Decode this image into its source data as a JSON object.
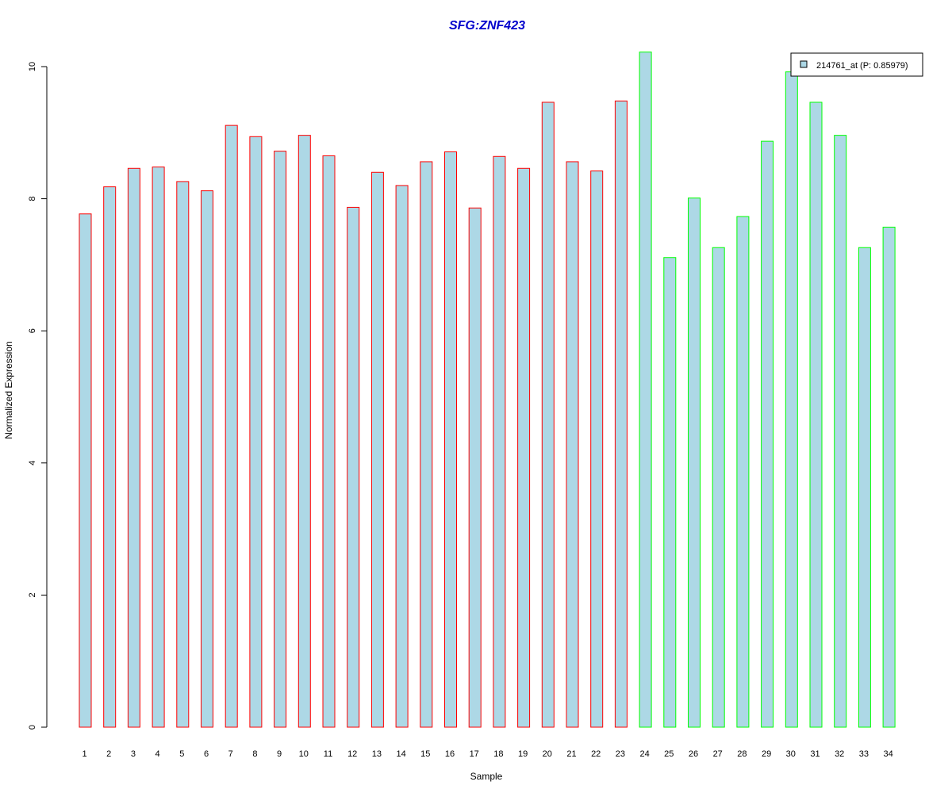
{
  "chart_data": {
    "type": "bar",
    "title": "SFG:ZNF423",
    "xlabel": "Sample",
    "ylabel": "Normalized Expression",
    "ylim": [
      0,
      10.3
    ],
    "yticks": [
      0,
      2,
      4,
      6,
      8,
      10
    ],
    "categories": [
      "1",
      "2",
      "3",
      "4",
      "5",
      "6",
      "7",
      "8",
      "9",
      "10",
      "11",
      "12",
      "13",
      "14",
      "15",
      "16",
      "17",
      "18",
      "19",
      "20",
      "21",
      "22",
      "23",
      "24",
      "25",
      "26",
      "27",
      "28",
      "29",
      "30",
      "31",
      "32",
      "33",
      "34"
    ],
    "series": [
      {
        "name": "214761_at (P: 0.85979)",
        "values": [
          7.77,
          8.18,
          8.46,
          8.48,
          8.26,
          8.12,
          9.11,
          8.94,
          8.72,
          8.96,
          8.65,
          7.87,
          8.4,
          8.2,
          8.56,
          8.71,
          7.86,
          8.64,
          8.46,
          9.46,
          8.56,
          8.42,
          9.48,
          10.22,
          7.11,
          8.01,
          7.26,
          7.73,
          8.87,
          9.92,
          9.46,
          8.96,
          7.26,
          7.57
        ]
      }
    ],
    "groups": [
      "red",
      "red",
      "red",
      "red",
      "red",
      "red",
      "red",
      "red",
      "red",
      "red",
      "red",
      "red",
      "red",
      "red",
      "red",
      "red",
      "red",
      "red",
      "red",
      "red",
      "red",
      "red",
      "red",
      "green",
      "green",
      "green",
      "green",
      "green",
      "green",
      "green",
      "green",
      "green",
      "green",
      "green"
    ],
    "colors": {
      "fill": "#add8e6",
      "red": "#ff0000",
      "green": "#00ff00",
      "title": "#0000cc"
    },
    "legend_position": "top-right"
  }
}
